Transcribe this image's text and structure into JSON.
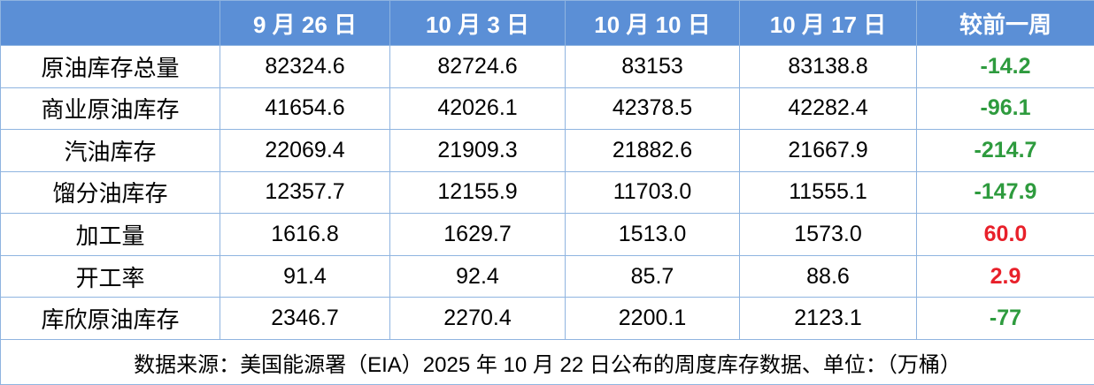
{
  "table": {
    "header": [
      "9 月 26 日",
      "10 月 3 日",
      "10 月 10 日",
      "10 月 17 日",
      "较前一周"
    ],
    "rows": [
      [
        "原油库存总量",
        "82324.6",
        "82724.6",
        "83153",
        "83138.8",
        "-14.2"
      ],
      [
        "商业原油库存",
        "41654.6",
        "42026.1",
        "42378.5",
        "42282.4",
        "-96.1"
      ],
      [
        "汽油库存",
        "22069.4",
        "21909.3",
        "21882.6",
        "21667.9",
        "-214.7"
      ],
      [
        "馏分油库存",
        "12357.7",
        "12155.9",
        "11703.0",
        "11555.1",
        "-147.9"
      ],
      [
        "加工量",
        "1616.8",
        "1629.7",
        "1513.0",
        "1573.0",
        "60.0"
      ],
      [
        "开工率",
        "91.4",
        "92.4",
        "85.7",
        "88.6",
        "2.9"
      ],
      [
        "库欣原油库存",
        "2346.7",
        "2270.4",
        "2200.1",
        "2123.1",
        "-77"
      ]
    ],
    "footer": "数据来源：美国能源署（EIA）2025 年 10 月 22 日公布的周度库存数据、单位：（万桶）"
  }
}
